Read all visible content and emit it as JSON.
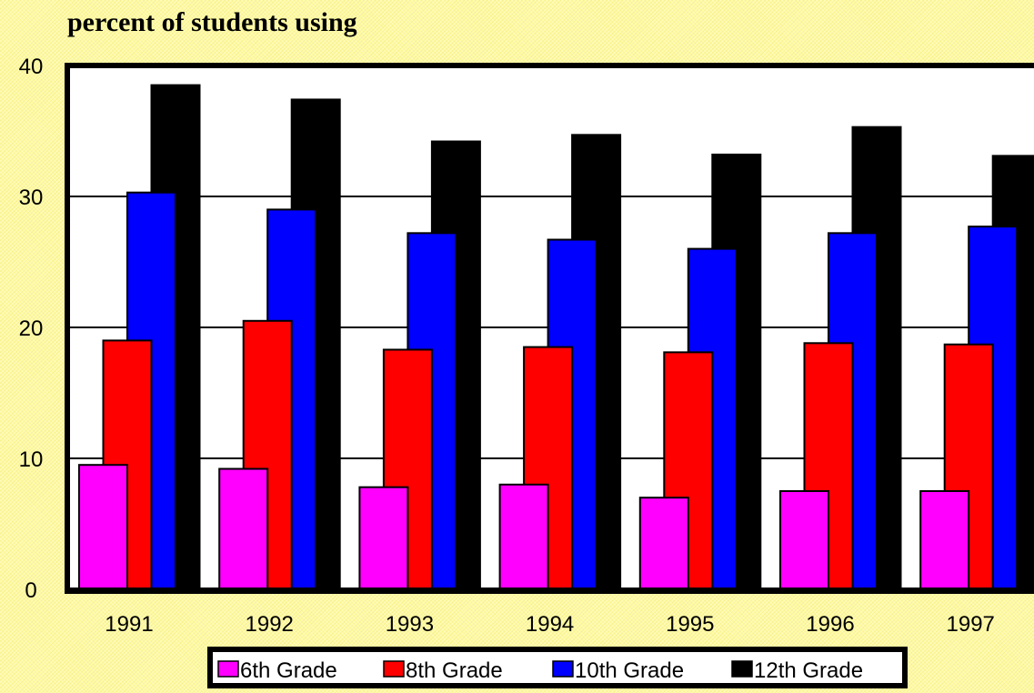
{
  "chart_data": {
    "type": "bar",
    "title": "percent of students using",
    "xlabel": "",
    "ylabel": "",
    "categories": [
      "1991",
      "1992",
      "1993",
      "1994",
      "1995",
      "1996",
      "1997"
    ],
    "ylim": [
      0,
      40
    ],
    "yticks": [
      "0",
      "10",
      "20",
      "30",
      "40"
    ],
    "grid": true,
    "legend_position": "bottom",
    "series": [
      {
        "name": "6th Grade",
        "color": "#ff00ff",
        "values": [
          9.5,
          9.2,
          7.8,
          8.0,
          7.0,
          7.5,
          7.5
        ]
      },
      {
        "name": "8th Grade",
        "color": "#ff0000",
        "values": [
          19.0,
          20.5,
          18.3,
          18.5,
          18.1,
          18.8,
          18.7
        ]
      },
      {
        "name": "10th Grade",
        "color": "#0000ff",
        "values": [
          30.3,
          29.0,
          27.2,
          26.7,
          26.0,
          27.2,
          27.7
        ]
      },
      {
        "name": "12th Grade",
        "color": "#000000",
        "values": [
          38.5,
          37.4,
          34.2,
          34.7,
          33.2,
          35.3,
          33.1
        ]
      }
    ]
  }
}
